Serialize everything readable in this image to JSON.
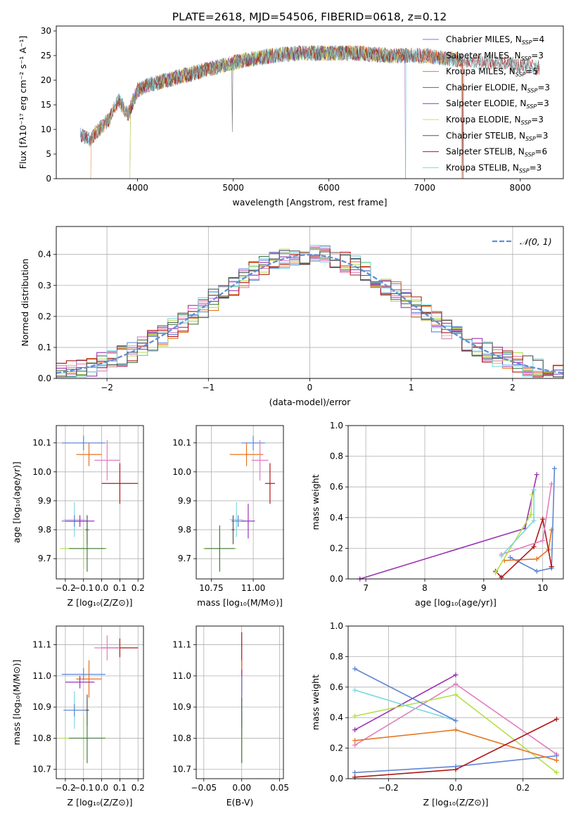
{
  "figure": {
    "title": "PLATE=2618, MJD=54506, FIBERID=0618, z=0.12"
  },
  "colors": {
    "Chabrier MILES": "#5f86d6",
    "Salpeter MILES": "#e8731f",
    "Kroupa MILES": "#cc8a1e",
    "Chabrier ELODIE": "#4a7a4a",
    "Salpeter ELODIE": "#9b32b4",
    "Kroupa ELODIE": "#d6e04a",
    "Chabrier STELIB": "#555555",
    "Salpeter STELIB": "#b01717",
    "Kroupa STELIB": "#7fd6e0",
    "pink": "#e07fbf",
    "lime": "#b3e04a",
    "gauss": "#5f8fd6"
  },
  "chart_data": [
    {
      "id": "spectrum",
      "type": "line",
      "xlabel": "wavelength [Angstrom, rest frame]",
      "ylabel": "Flux [fλ10⁻¹⁷ erg cm⁻² s⁻¹ A⁻¹]",
      "xlim": [
        3150,
        8450
      ],
      "ylim": [
        0,
        31
      ],
      "xticks": [
        4000,
        5000,
        6000,
        7000,
        8000
      ],
      "yticks": [
        0,
        5,
        10,
        15,
        20,
        25,
        30
      ],
      "legend_position": "top-right",
      "grid": false,
      "shape_points": [
        [
          3400,
          9
        ],
        [
          3500,
          8
        ],
        [
          3700,
          12
        ],
        [
          3800,
          16
        ],
        [
          3900,
          13
        ],
        [
          4000,
          18
        ],
        [
          4100,
          19
        ],
        [
          4300,
          20
        ],
        [
          4500,
          21
        ],
        [
          4700,
          22
        ],
        [
          4900,
          23
        ],
        [
          5100,
          24
        ],
        [
          5400,
          25
        ],
        [
          5700,
          25.5
        ],
        [
          6000,
          25.5
        ],
        [
          6300,
          25.5
        ],
        [
          6600,
          25
        ],
        [
          7000,
          25
        ],
        [
          7400,
          24
        ],
        [
          7800,
          23.5
        ],
        [
          8200,
          22.5
        ]
      ],
      "series": [
        {
          "name": "Chabrier MILES, N_SSP=4",
          "range": [
            3400,
            7400
          ],
          "dip": [
            7390,
            0
          ]
        },
        {
          "name": "Salpeter MILES, N_SSP=3",
          "range": [
            3510,
            7400
          ],
          "dip": [
            3510,
            0
          ]
        },
        {
          "name": "Kroupa MILES, N_SSP=5",
          "range": [
            3510,
            7400
          ],
          "dip": [
            7400,
            0
          ]
        },
        {
          "name": "Chabrier ELODIE, N_SSP=3",
          "range": [
            3920,
            6800
          ],
          "dip": [
            3920,
            0
          ]
        },
        {
          "name": "Salpeter ELODIE, N_SSP=3",
          "range": [
            3920,
            6800
          ],
          "dip": [
            6800,
            0
          ]
        },
        {
          "name": "Kroupa ELODIE, N_SSP=3",
          "range": [
            3920,
            6800
          ],
          "dip": [
            3920,
            0
          ]
        },
        {
          "name": "Chabrier STELIB, N_SSP=3",
          "range": [
            3400,
            8200
          ],
          "dip": [
            4990,
            9.5
          ]
        },
        {
          "name": "Salpeter STELIB, N_SSP=6",
          "range": [
            3400,
            8200
          ],
          "dip": [
            7400,
            0
          ]
        },
        {
          "name": "Kroupa STELIB, N_SSP=3",
          "range": [
            3400,
            8200
          ],
          "dip": [
            6800,
            0
          ]
        }
      ]
    },
    {
      "id": "residuals",
      "type": "line",
      "xlabel": "(data-model)/error",
      "ylabel": "Normed distribution",
      "xlim": [
        -2.5,
        2.5
      ],
      "ylim": [
        0,
        0.49
      ],
      "xticks": [
        -2,
        -1,
        0,
        1,
        2
      ],
      "yticks": [
        0.0,
        0.1,
        0.2,
        0.3,
        0.4
      ],
      "grid": true,
      "legend_position": "top-right",
      "gauss_label": "𝒩(0, 1)",
      "bin_width": 0.1
    },
    {
      "id": "age-vs-Z",
      "type": "scatter",
      "xlabel": "Z [log₁₀(Z/Z⊙)]",
      "ylabel": "age  [log₁₀(age/yr)]",
      "xlim": [
        -0.25,
        0.23
      ],
      "ylim": [
        9.63,
        10.16
      ],
      "xticks": [
        -0.2,
        -0.1,
        0.0,
        0.1,
        0.2
      ],
      "yticks": [
        9.7,
        9.8,
        9.9,
        10.0,
        10.1
      ],
      "grid": true,
      "points": [
        {
          "c": "#5f86d6",
          "x": -0.1,
          "xe": 0.12,
          "y": 10.1,
          "ye": 0.025
        },
        {
          "c": "#e8731f",
          "x": -0.07,
          "xe": 0.07,
          "y": 10.06,
          "ye": 0.04
        },
        {
          "c": "#e07fbf",
          "x": 0.03,
          "xe": 0.07,
          "y": 10.04,
          "ye": 0.07
        },
        {
          "c": "#b01717",
          "x": 0.1,
          "xe": 0.1,
          "y": 9.96,
          "ye": 0.07
        },
        {
          "c": "#7fd6e0",
          "x": -0.15,
          "xe": 0.06,
          "y": 9.835,
          "ye": 0.06
        },
        {
          "c": "#5f86d6",
          "x": -0.15,
          "xe": 0.07,
          "y": 9.83,
          "ye": 0.02
        },
        {
          "c": "#9b32b4",
          "x": -0.12,
          "xe": 0.08,
          "y": 9.83,
          "ye": 0.02
        },
        {
          "c": "#555555",
          "x": -0.08,
          "xe": 0.01,
          "y": 9.8,
          "ye": 0.05
        },
        {
          "c": "#b3e04a",
          "x": -0.1,
          "xe": 0.13,
          "y": 9.735,
          "ye": 0.07
        },
        {
          "c": "#4a7a4a",
          "x": -0.08,
          "xe": 0.1,
          "y": 9.735,
          "ye": 0.08
        }
      ]
    },
    {
      "id": "age-vs-mass",
      "type": "scatter",
      "xlabel": "mass [log₁₀(M/M⊙)]",
      "ylabel": "",
      "xlim": [
        10.66,
        11.18
      ],
      "ylim": [
        9.63,
        10.16
      ],
      "xticks": [
        10.75,
        11.0
      ],
      "yticks": [
        9.7,
        9.8,
        9.9,
        10.0,
        10.1
      ],
      "grid": true,
      "points": [
        {
          "c": "#5f86d6",
          "x": 11.0,
          "xe": 0.07,
          "y": 10.1,
          "ye": 0.025
        },
        {
          "c": "#e8731f",
          "x": 10.96,
          "xe": 0.1,
          "y": 10.06,
          "ye": 0.04
        },
        {
          "c": "#e07fbf",
          "x": 11.04,
          "xe": 0.05,
          "y": 10.04,
          "ye": 0.07
        },
        {
          "c": "#b01717",
          "x": 11.1,
          "xe": 0.03,
          "y": 9.96,
          "ye": 0.07
        },
        {
          "c": "#7fd6e0",
          "x": 10.9,
          "xe": 0.04,
          "y": 9.835,
          "ye": 0.06
        },
        {
          "c": "#5f86d6",
          "x": 10.91,
          "xe": 0.04,
          "y": 9.83,
          "ye": 0.02
        },
        {
          "c": "#9b32b4",
          "x": 10.97,
          "xe": 0.04,
          "y": 9.83,
          "ye": 0.06
        },
        {
          "c": "#555555",
          "x": 10.88,
          "xe": 0.01,
          "y": 9.8,
          "ye": 0.05
        },
        {
          "c": "#b3e04a",
          "x": 10.8,
          "xe": 0.1,
          "y": 9.735,
          "ye": 0.07
        },
        {
          "c": "#4a7a4a",
          "x": 10.8,
          "xe": 0.09,
          "y": 9.735,
          "ye": 0.08
        }
      ]
    },
    {
      "id": "weight-vs-age",
      "type": "line",
      "xlabel": "age  [log₁₀(age/yr)]",
      "ylabel": "mass weight",
      "xlim": [
        6.7,
        10.35
      ],
      "ylim": [
        0,
        1
      ],
      "xticks": [
        7,
        8,
        9,
        10
      ],
      "yticks": [
        0.0,
        0.2,
        0.4,
        0.6,
        0.8,
        1.0
      ],
      "grid": true,
      "series": [
        {
          "c": "#9b32b4",
          "pts": [
            [
              6.9,
              0.0
            ],
            [
              9.7,
              0.33
            ],
            [
              9.9,
              0.68
            ]
          ]
        },
        {
          "c": "#5f86d6",
          "pts": [
            [
              9.45,
              0.14
            ],
            [
              9.9,
              0.05
            ],
            [
              10.15,
              0.07
            ],
            [
              10.2,
              0.72
            ]
          ]
        },
        {
          "c": "#e8731f",
          "pts": [
            [
              9.35,
              0.12
            ],
            [
              9.9,
              0.13
            ],
            [
              10.1,
              0.19
            ],
            [
              10.15,
              0.32
            ]
          ]
        },
        {
          "c": "#b01717",
          "pts": [
            [
              9.2,
              0.05
            ],
            [
              9.3,
              0.01
            ],
            [
              9.85,
              0.21
            ],
            [
              10.0,
              0.39
            ],
            [
              10.15,
              0.08
            ]
          ]
        },
        {
          "c": "#e07fbf",
          "pts": [
            [
              9.3,
              0.16
            ],
            [
              10.0,
              0.25
            ],
            [
              10.15,
              0.62
            ]
          ]
        },
        {
          "c": "#b3e04a",
          "pts": [
            [
              9.2,
              0.04
            ],
            [
              9.8,
              0.42
            ],
            [
              9.82,
              0.55
            ]
          ]
        },
        {
          "c": "#7fd6e0",
          "pts": [
            [
              9.3,
              0.15
            ],
            [
              9.85,
              0.38
            ],
            [
              9.85,
              0.58
            ]
          ]
        }
      ]
    },
    {
      "id": "mass-vs-Z",
      "type": "scatter",
      "xlabel": "Z [log₁₀(Z/Z⊙)]",
      "ylabel": "mass [log₁₀(M/M⊙)]",
      "xlim": [
        -0.25,
        0.23
      ],
      "ylim": [
        10.67,
        11.16
      ],
      "xticks": [
        -0.2,
        -0.1,
        0.0,
        0.1,
        0.2
      ],
      "yticks": [
        10.7,
        10.8,
        10.9,
        11.0,
        11.1
      ],
      "grid": true,
      "points": [
        {
          "c": "#b01717",
          "x": 0.1,
          "xe": 0.1,
          "y": 11.09,
          "ye": 0.03
        },
        {
          "c": "#e07fbf",
          "x": 0.03,
          "xe": 0.07,
          "y": 11.09,
          "ye": 0.04
        },
        {
          "c": "#5f86d6",
          "x": -0.1,
          "xe": 0.12,
          "y": 11.005,
          "ye": 0.02
        },
        {
          "c": "#e8731f",
          "x": -0.07,
          "xe": 0.07,
          "y": 10.99,
          "ye": 0.06
        },
        {
          "c": "#9b32b4",
          "x": -0.12,
          "xe": 0.08,
          "y": 10.98,
          "ye": 0.02
        },
        {
          "c": "#7fd6e0",
          "x": -0.15,
          "xe": 0.06,
          "y": 10.89,
          "ye": 0.06
        },
        {
          "c": "#5f86d6",
          "x": -0.15,
          "xe": 0.06,
          "y": 10.89,
          "ye": 0.02
        },
        {
          "c": "#555555",
          "x": -0.08,
          "xe": 0.01,
          "y": 10.89,
          "ye": 0.05
        },
        {
          "c": "#b3e04a",
          "x": -0.1,
          "xe": 0.13,
          "y": 10.8,
          "ye": 0.07
        },
        {
          "c": "#4a7a4a",
          "x": -0.08,
          "xe": 0.1,
          "y": 10.8,
          "ye": 0.08
        }
      ]
    },
    {
      "id": "mass-vs-ebv",
      "type": "scatter",
      "xlabel": "E(B-V)",
      "ylabel": "",
      "xlim": [
        -0.06,
        0.055
      ],
      "ylim": [
        10.67,
        11.16
      ],
      "xticks": [
        -0.05,
        0.0,
        0.05
      ],
      "yticks": [
        10.7,
        10.8,
        10.9,
        11.0,
        11.1
      ],
      "grid": true,
      "points": [
        {
          "c": "#b01717",
          "x": 0.0,
          "xe": 0.0,
          "y": 11.05,
          "ye": 0.09
        },
        {
          "c": "#e8731f",
          "x": 0.0,
          "xe": 0.0,
          "y": 10.99,
          "ye": 0.06
        },
        {
          "c": "#9b32b4",
          "x": 0.0,
          "xe": 0.0,
          "y": 10.98,
          "ye": 0.04
        },
        {
          "c": "#5f86d6",
          "x": 0.0,
          "xe": 0.0,
          "y": 10.96,
          "ye": 0.04
        },
        {
          "c": "#7fd6e0",
          "x": 0.0,
          "xe": 0.0,
          "y": 10.87,
          "ye": 0.05
        },
        {
          "c": "#555555",
          "x": 0.0,
          "xe": 0.0,
          "y": 10.88,
          "ye": 0.05
        },
        {
          "c": "#b3e04a",
          "x": 0.0,
          "xe": 0.0,
          "y": 10.78,
          "ye": 0.06
        },
        {
          "c": "#4a7a4a",
          "x": 0.0,
          "xe": 0.0,
          "y": 10.8,
          "ye": 0.08
        }
      ]
    },
    {
      "id": "weight-vs-Z",
      "type": "line",
      "xlabel": "Z [log₁₀(Z/Z⊙)]",
      "ylabel": "mass weight",
      "xlim": [
        -0.32,
        0.32
      ],
      "ylim": [
        0,
        1
      ],
      "xticks": [
        -0.2,
        0.0,
        0.2
      ],
      "yticks": [
        0.0,
        0.2,
        0.4,
        0.6,
        0.8,
        1.0
      ],
      "grid": true,
      "series": [
        {
          "c": "#9b32b4",
          "pts": [
            [
              -0.3,
              0.32
            ],
            [
              0.0,
              0.68
            ]
          ]
        },
        {
          "c": "#e07fbf",
          "pts": [
            [
              -0.3,
              0.22
            ],
            [
              0.0,
              0.62
            ],
            [
              0.3,
              0.16
            ]
          ]
        },
        {
          "c": "#b3e04a",
          "pts": [
            [
              -0.3,
              0.41
            ],
            [
              0.0,
              0.55
            ],
            [
              0.3,
              0.04
            ]
          ]
        },
        {
          "c": "#5f86d6",
          "pts": [
            [
              -0.3,
              0.04
            ],
            [
              0.0,
              0.08
            ],
            [
              0.3,
              0.15
            ]
          ]
        },
        {
          "c": "#e8731f",
          "pts": [
            [
              -0.3,
              0.25
            ],
            [
              0.0,
              0.32
            ],
            [
              0.3,
              0.12
            ]
          ]
        },
        {
          "c": "#b01717",
          "pts": [
            [
              -0.3,
              0.01
            ],
            [
              0.0,
              0.06
            ],
            [
              0.3,
              0.39
            ]
          ]
        },
        {
          "c": "#7fd6e0",
          "pts": [
            [
              -0.3,
              0.58
            ],
            [
              0.0,
              0.38
            ]
          ]
        },
        {
          "c": "#5f86d6",
          "pts": [
            [
              -0.3,
              0.72
            ],
            [
              0.0,
              0.38
            ]
          ]
        }
      ]
    }
  ]
}
